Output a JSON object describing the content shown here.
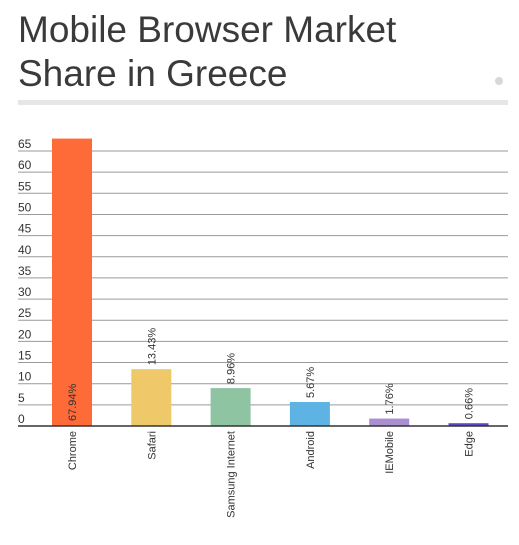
{
  "title": "Mobile Browser Market Share in Greece",
  "chart_data": {
    "type": "bar",
    "categories": [
      "Chrome",
      "Safari",
      "Samsung Internet",
      "Android",
      "IEMobile",
      "Edge"
    ],
    "values": [
      67.94,
      13.43,
      8.96,
      5.67,
      1.76,
      0.66
    ],
    "data_labels": [
      "67.94%",
      "13.43%",
      "8.96%",
      "5.67%",
      "1.76%",
      "0.66%"
    ],
    "colors": [
      "#ff6a39",
      "#efc86a",
      "#8ec4a2",
      "#5db4e4",
      "#a98ed0",
      "#5b49c8"
    ],
    "ylim": [
      0,
      65
    ],
    "yticks": [
      0,
      5,
      10,
      15,
      20,
      25,
      30,
      35,
      40,
      45,
      50,
      55,
      60,
      65
    ],
    "grid": true,
    "title": "Mobile Browser Market Share in Greece",
    "xlabel": "",
    "ylabel": ""
  }
}
